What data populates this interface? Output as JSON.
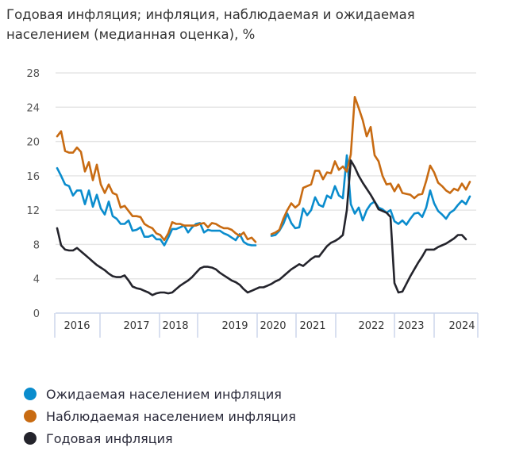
{
  "title_line1": "Годовая инфляция; инфляция, наблюдаемая и ожидаемая",
  "title_line2": "населением (медианная оценка), %",
  "chart_data": {
    "type": "line",
    "title": "Годовая инфляция; инфляция, наблюдаемая и ожидаемая населением (медианная оценка), %",
    "ylim": [
      0,
      28
    ],
    "yticks": [
      0,
      4,
      8,
      12,
      16,
      20,
      24,
      28
    ],
    "grid": true,
    "legend_placement": "bottom",
    "xtick_labels": [
      "2016",
      "2017",
      "2018",
      "2019",
      "2020",
      "2021",
      "2022",
      "2023",
      "2024"
    ],
    "series": [
      {
        "name": "Ожидаемая населением инфляция",
        "color": "#0a8ccd",
        "values": [
          16.9,
          16.0,
          15.0,
          14.8,
          13.7,
          14.3,
          14.3,
          12.7,
          14.3,
          12.4,
          13.8,
          12.2,
          11.5,
          13.0,
          11.3,
          11.0,
          10.4,
          10.4,
          10.8,
          9.6,
          9.7,
          10.0,
          8.9,
          8.9,
          9.1,
          8.6,
          8.6,
          7.9,
          8.8,
          9.8,
          9.8,
          10.0,
          10.2,
          9.4,
          10.0,
          10.4,
          10.5,
          9.4,
          9.7,
          9.6,
          9.6,
          9.6,
          9.3,
          9.1,
          8.8,
          8.5,
          9.2,
          8.3,
          8.0,
          7.9,
          7.9,
          null,
          null,
          null,
          9.0,
          9.1,
          9.6,
          10.4,
          11.6,
          10.5,
          9.9,
          10.0,
          12.2,
          11.4,
          12.0,
          13.5,
          12.6,
          12.4,
          13.7,
          13.4,
          14.8,
          13.7,
          13.4,
          18.4,
          12.7,
          11.6,
          12.3,
          10.8,
          12.0,
          12.7,
          13.0,
          12.3,
          12.1,
          11.7,
          12.0,
          10.7,
          10.4,
          10.8,
          10.3,
          11.0,
          11.6,
          11.7,
          11.2,
          12.3,
          14.3,
          12.8,
          11.9,
          11.5,
          11.0,
          11.7,
          12.0,
          12.6,
          13.1,
          12.7,
          13.6
        ]
      },
      {
        "name": "Наблюдаемая населением инфляция",
        "color": "#c86b12",
        "values": [
          20.6,
          21.2,
          18.9,
          18.7,
          18.7,
          19.3,
          18.8,
          16.5,
          17.6,
          15.5,
          17.3,
          15.0,
          14.0,
          15.0,
          14.0,
          13.8,
          12.3,
          12.5,
          11.9,
          11.3,
          11.3,
          11.2,
          10.4,
          10.1,
          9.9,
          9.3,
          9.1,
          8.5,
          9.3,
          10.6,
          10.4,
          10.4,
          10.2,
          10.2,
          10.2,
          10.2,
          10.4,
          10.5,
          10.0,
          10.5,
          10.4,
          10.1,
          9.9,
          9.9,
          9.7,
          9.3,
          9.0,
          9.4,
          8.6,
          8.8,
          8.3,
          null,
          null,
          null,
          9.2,
          9.4,
          9.7,
          11.0,
          12.0,
          12.8,
          12.3,
          12.7,
          14.6,
          14.8,
          15.0,
          16.6,
          16.6,
          15.6,
          16.4,
          16.3,
          17.7,
          16.7,
          17.1,
          16.5,
          18.5,
          25.2,
          23.9,
          22.5,
          20.6,
          21.7,
          18.4,
          17.7,
          16.0,
          15.0,
          15.1,
          14.2,
          15.0,
          14.0,
          13.9,
          13.8,
          13.4,
          13.8,
          13.9,
          15.4,
          17.2,
          16.4,
          15.2,
          14.8,
          14.3,
          14.0,
          14.5,
          14.3,
          15.1,
          14.4,
          15.3
        ]
      },
      {
        "name": "Годовая инфляция",
        "color": "#24242c",
        "values": [
          9.9,
          7.9,
          7.4,
          7.3,
          7.3,
          7.6,
          7.2,
          6.8,
          6.4,
          6.0,
          5.6,
          5.3,
          5.0,
          4.6,
          4.3,
          4.2,
          4.2,
          4.4,
          3.8,
          3.1,
          2.9,
          2.8,
          2.6,
          2.4,
          2.1,
          2.3,
          2.4,
          2.4,
          2.3,
          2.4,
          2.8,
          3.2,
          3.5,
          3.8,
          4.2,
          4.7,
          5.2,
          5.4,
          5.4,
          5.3,
          5.1,
          4.7,
          4.4,
          4.1,
          3.8,
          3.6,
          3.3,
          2.8,
          2.4,
          2.6,
          2.8,
          3.0,
          3.0,
          3.2,
          3.4,
          3.7,
          3.9,
          4.3,
          4.7,
          5.1,
          5.4,
          5.7,
          5.5,
          5.9,
          6.3,
          6.6,
          6.6,
          7.2,
          7.8,
          8.2,
          8.4,
          8.7,
          9.1,
          12.0,
          17.8,
          17.0,
          16.0,
          15.2,
          14.5,
          13.8,
          13.0,
          12.1,
          11.9,
          11.7,
          11.2,
          3.5,
          2.4,
          2.5,
          3.4,
          4.3,
          5.1,
          5.9,
          6.6,
          7.4,
          7.4,
          7.4,
          7.7,
          7.9,
          8.1,
          8.4,
          8.7,
          9.1,
          9.1,
          8.6,
          null
        ]
      }
    ]
  }
}
